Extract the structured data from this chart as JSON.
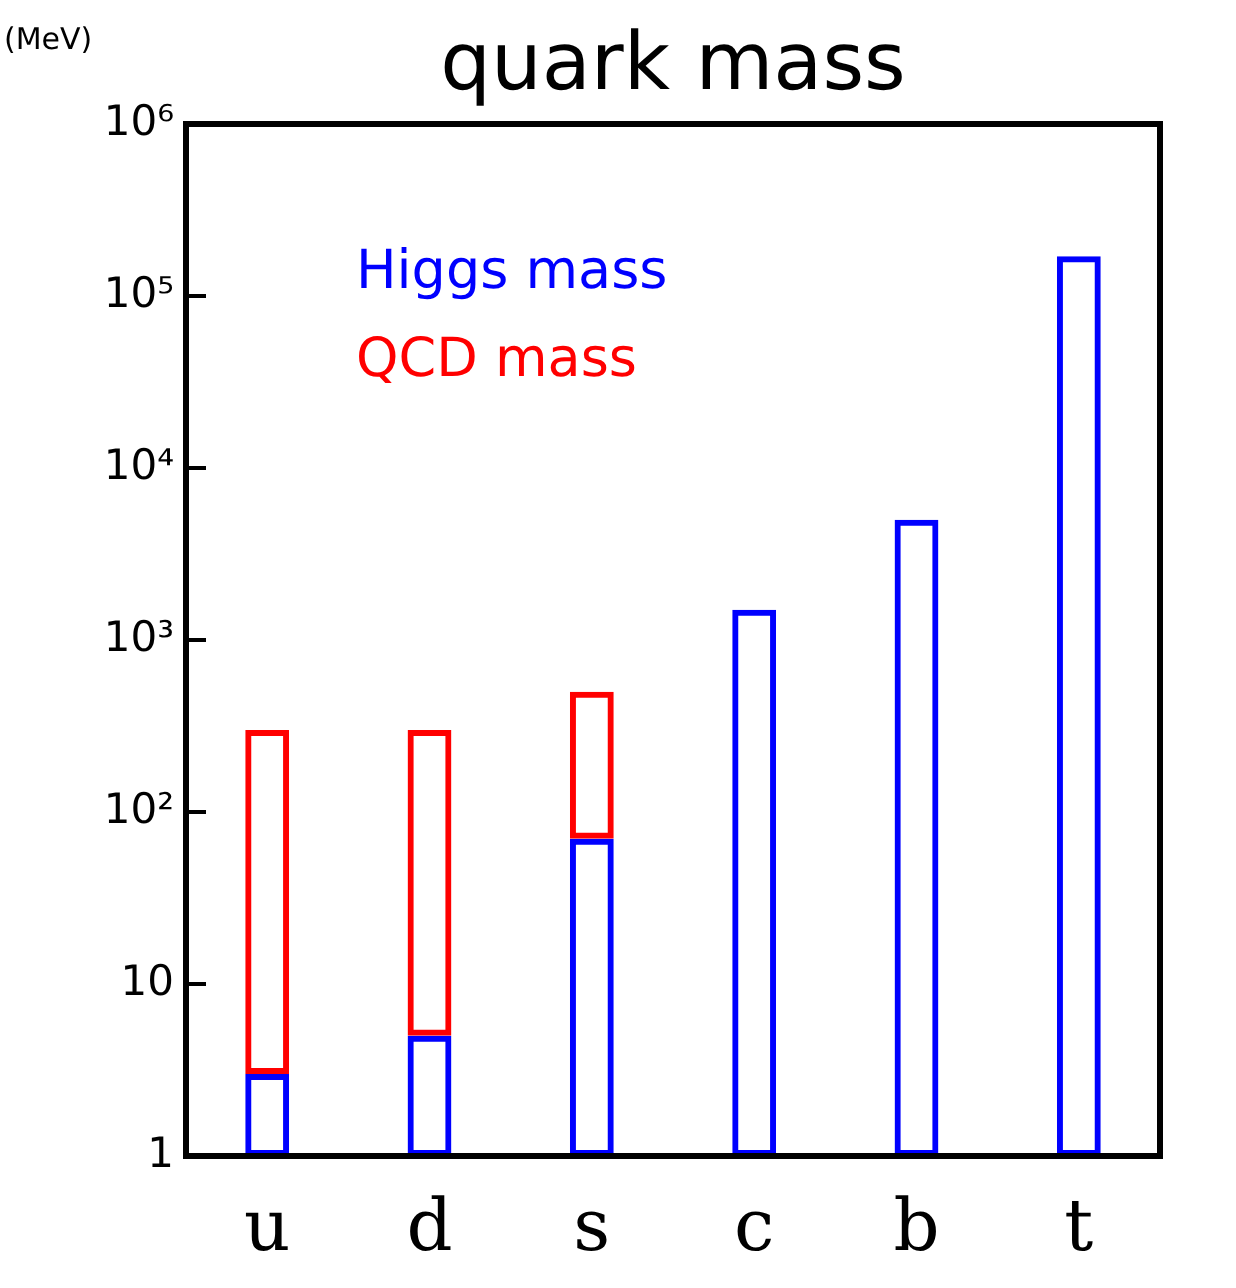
{
  "chart_data": {
    "type": "bar",
    "title": "quark mass",
    "ylabel": "(MeV)",
    "categories": [
      "u",
      "d",
      "s",
      "c",
      "b",
      "t"
    ],
    "stacked": true,
    "log": true,
    "legend": "top left",
    "ylim": [
      1,
      1000000
    ],
    "yticks": [
      1,
      10,
      {
        "value": 100,
        "label": "10²"
      },
      {
        "value": 1000,
        "label": "10³"
      },
      {
        "value": 10000,
        "label": "10⁴"
      },
      {
        "value": 100000,
        "label": "10⁵"
      },
      {
        "value": 1000000,
        "label": "10⁶"
      }
    ],
    "series": [
      {
        "name": "Higgs mass",
        "color": "#0000ff",
        "values": [
          3,
          5,
          70,
          1500,
          5000,
          170000
        ]
      },
      {
        "name": "QCD mass",
        "color": "#ff0000",
        "values": [
          297,
          295,
          430,
          null,
          null,
          null
        ]
      }
    ]
  }
}
